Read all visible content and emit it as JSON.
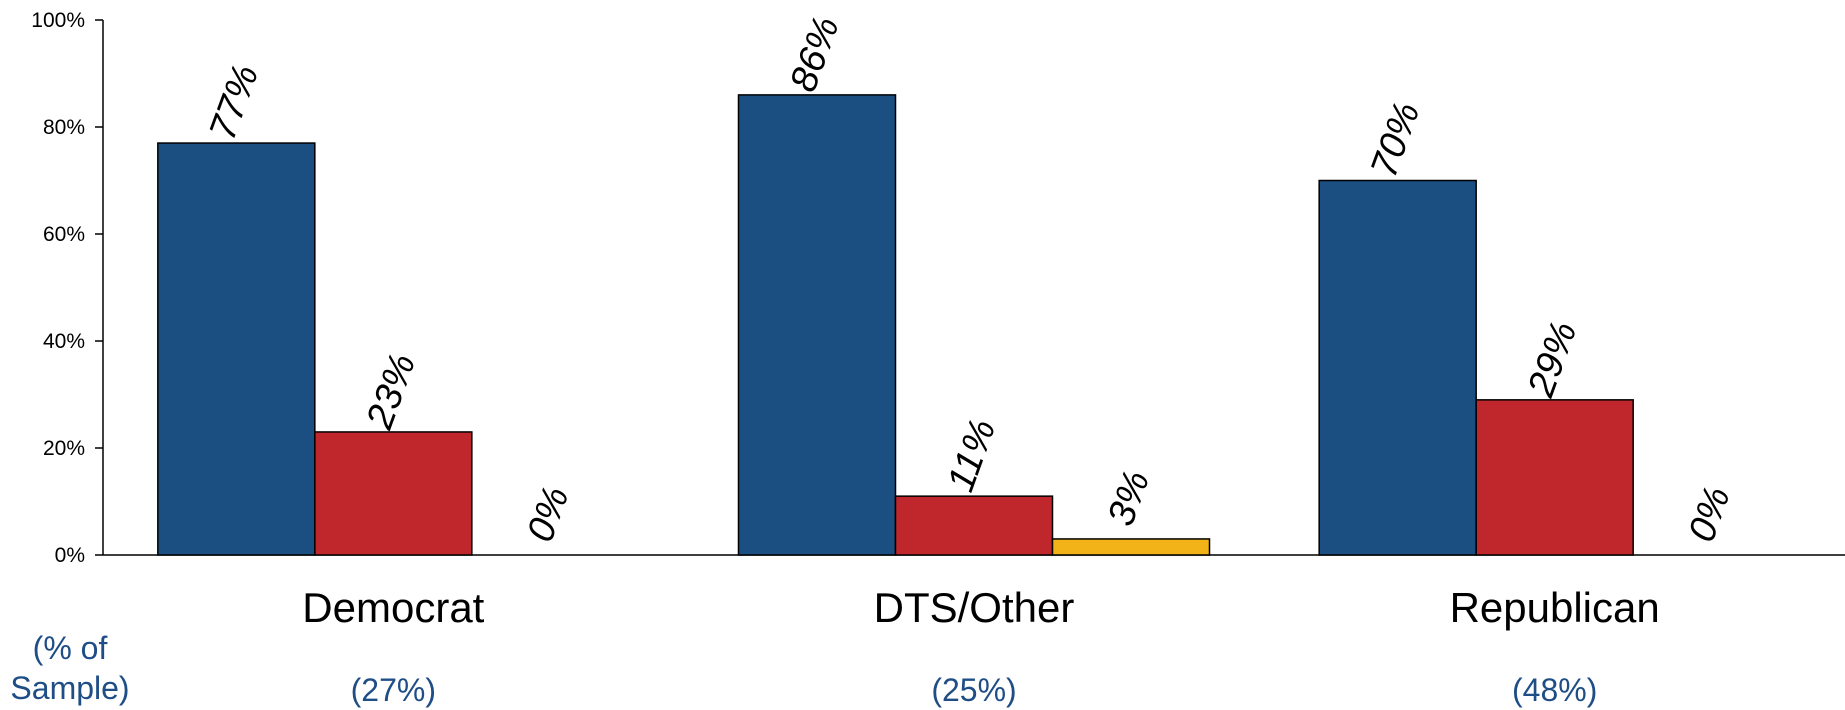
{
  "chart_data": {
    "type": "bar",
    "categories": [
      "Democrat",
      "DTS/Other",
      "Republican"
    ],
    "series": [
      {
        "values": [
          77,
          86,
          70
        ],
        "color": "#1B4F82"
      },
      {
        "values": [
          23,
          11,
          29
        ],
        "color": "#C0272D"
      },
      {
        "values": [
          0,
          3,
          0
        ],
        "color": "#F2B318"
      }
    ],
    "data_labels": [
      [
        "77%",
        "86%",
        "70%"
      ],
      [
        "23%",
        "11%",
        "29%"
      ],
      [
        "0%",
        "3%",
        "0%"
      ]
    ],
    "ylim": [
      0,
      100
    ],
    "yticks": [
      0,
      20,
      40,
      60,
      80,
      100
    ],
    "ytick_labels": [
      "0%",
      "20%",
      "40%",
      "60%",
      "80%",
      "100%"
    ],
    "grid": false,
    "sample_caption": [
      "(% of",
      "Sample)"
    ],
    "sample_shares": [
      "(27%)",
      "(25%)",
      "(48%)"
    ]
  },
  "colors": {
    "sample_text": "#1F4E86",
    "axis": "#000000",
    "bar_outline": "#000000"
  }
}
